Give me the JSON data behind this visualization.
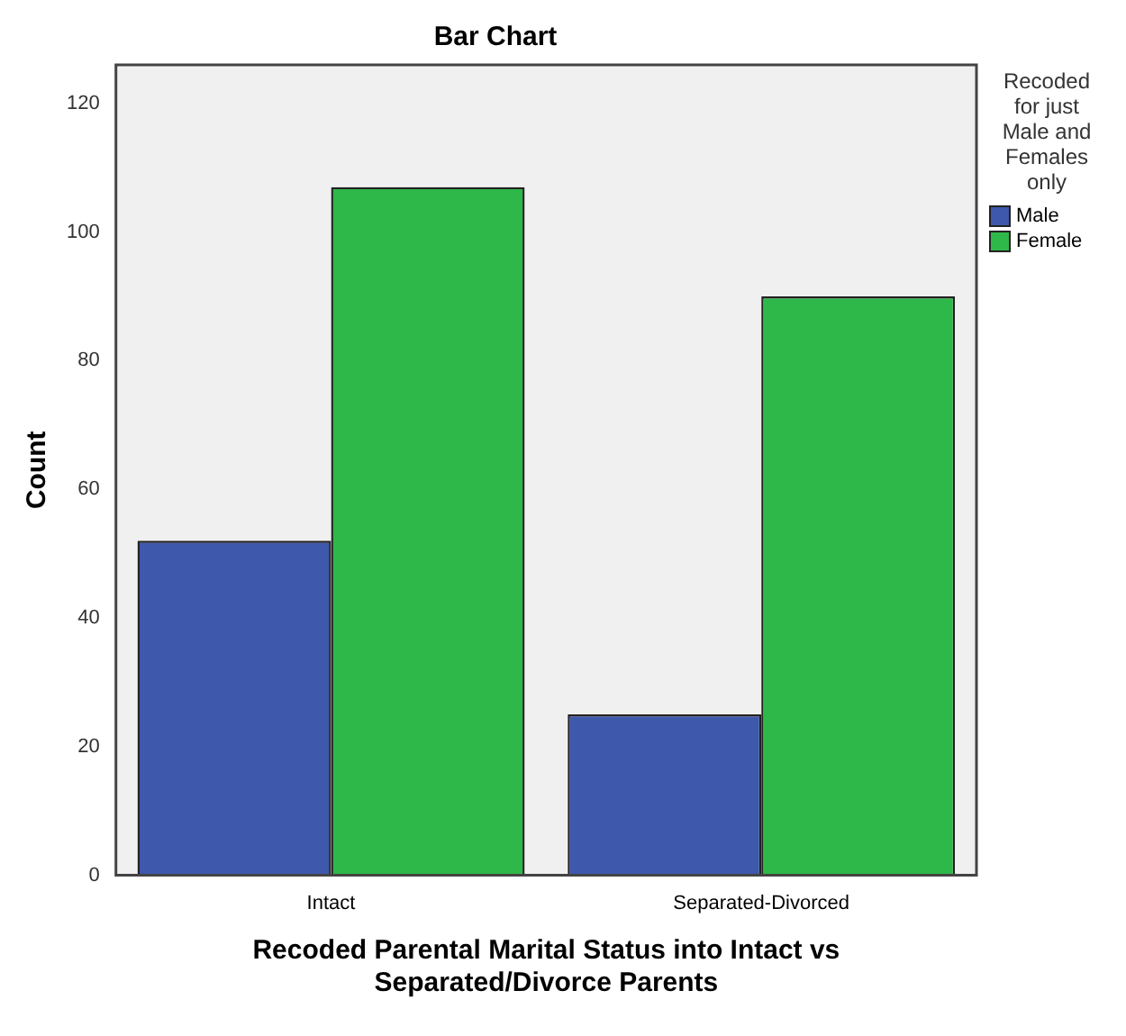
{
  "chart_data": {
    "type": "bar",
    "title": "Bar Chart",
    "xlabel": "Recoded Parental Marital Status into Intact vs Separated/Divorce Parents",
    "ylabel": "Count",
    "legend_title": "Recoded for just Male and Females only",
    "categories": [
      "Intact",
      "Separated-Divorced"
    ],
    "series": [
      {
        "name": "Male",
        "color": "#3e58ab",
        "values": [
          52,
          25
        ]
      },
      {
        "name": "Female",
        "color": "#2fb84a",
        "values": [
          107,
          90
        ]
      }
    ],
    "ylim": [
      0,
      126
    ],
    "yticks": [
      0,
      20,
      40,
      60,
      80,
      100,
      120
    ],
    "grid": false,
    "legend": "top right"
  }
}
